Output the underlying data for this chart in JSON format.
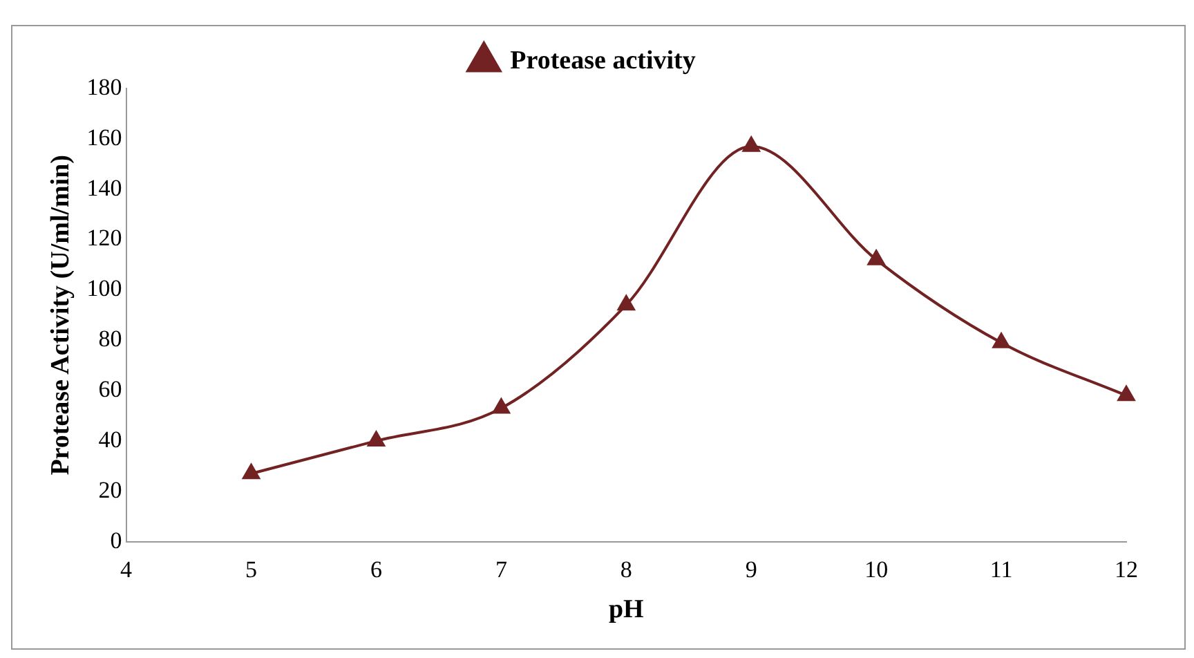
{
  "chart_data": {
    "type": "line",
    "xlabel": "pH",
    "ylabel": "Protease Activity (U/ml/min)",
    "x": [
      5,
      6,
      7,
      8,
      9,
      10,
      11,
      12
    ],
    "series": [
      {
        "name": "Protease activity",
        "color": "#722222",
        "values": [
          27,
          40,
          53,
          94,
          157,
          112,
          79,
          58
        ]
      }
    ],
    "xlim": [
      4,
      12
    ],
    "xticks": [
      4,
      5,
      6,
      7,
      8,
      9,
      10,
      11,
      12
    ],
    "ylim": [
      0,
      180
    ],
    "yticks": [
      0,
      20,
      40,
      60,
      80,
      100,
      120,
      140,
      160,
      180
    ],
    "grid": false,
    "legend": "top",
    "marker": "triangle",
    "line_style": "solid"
  }
}
